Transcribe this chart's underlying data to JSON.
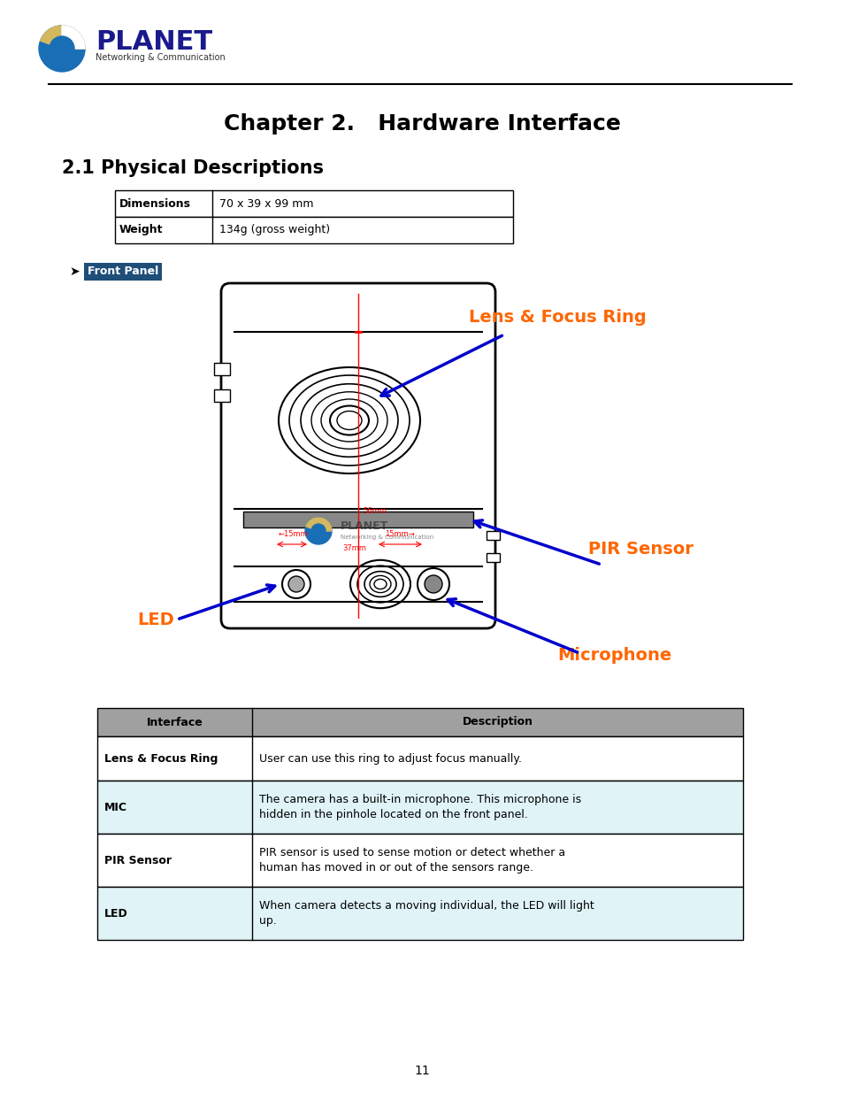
{
  "page_number": "11",
  "logo_text": "PLANET",
  "logo_sub": "Networking & Communication",
  "chapter_title": "Chapter 2.   Hardware Interface",
  "section_title": "2.1 Physical Descriptions",
  "table1": {
    "rows": [
      [
        "Dimensions",
        "70 x 39 x 99 mm"
      ],
      [
        "Weight",
        "134g (gross weight)"
      ]
    ]
  },
  "front_panel_label": "Front Panel",
  "label_lens": "Lens & Focus Ring",
  "label_pir": "PIR Sensor",
  "label_led": "LED",
  "label_mic": "Microphone",
  "table2_header": [
    "Interface",
    "Description"
  ],
  "table2_rows": [
    [
      "Lens & Focus Ring",
      "User can use this ring to adjust focus manually.",
      false
    ],
    [
      "MIC",
      "The camera has a built-in microphone. This microphone is\nhidden in the pinhole located on the front panel.",
      true
    ],
    [
      "PIR Sensor",
      "PIR sensor is used to sense motion or detect whether a\nhuman has moved in or out of the sensors range.",
      false
    ],
    [
      "LED",
      "When camera detects a moving individual, the LED will light\nup.",
      true
    ]
  ],
  "orange_color": "#FF6600",
  "blue_color": "#0000CC",
  "dark_blue": "#1F3864",
  "header_bg": "#A0A0A0",
  "alt_row_bg": "#E0F4F8",
  "front_panel_bg": "#1F4E79",
  "front_panel_text": "#FFFFFF"
}
